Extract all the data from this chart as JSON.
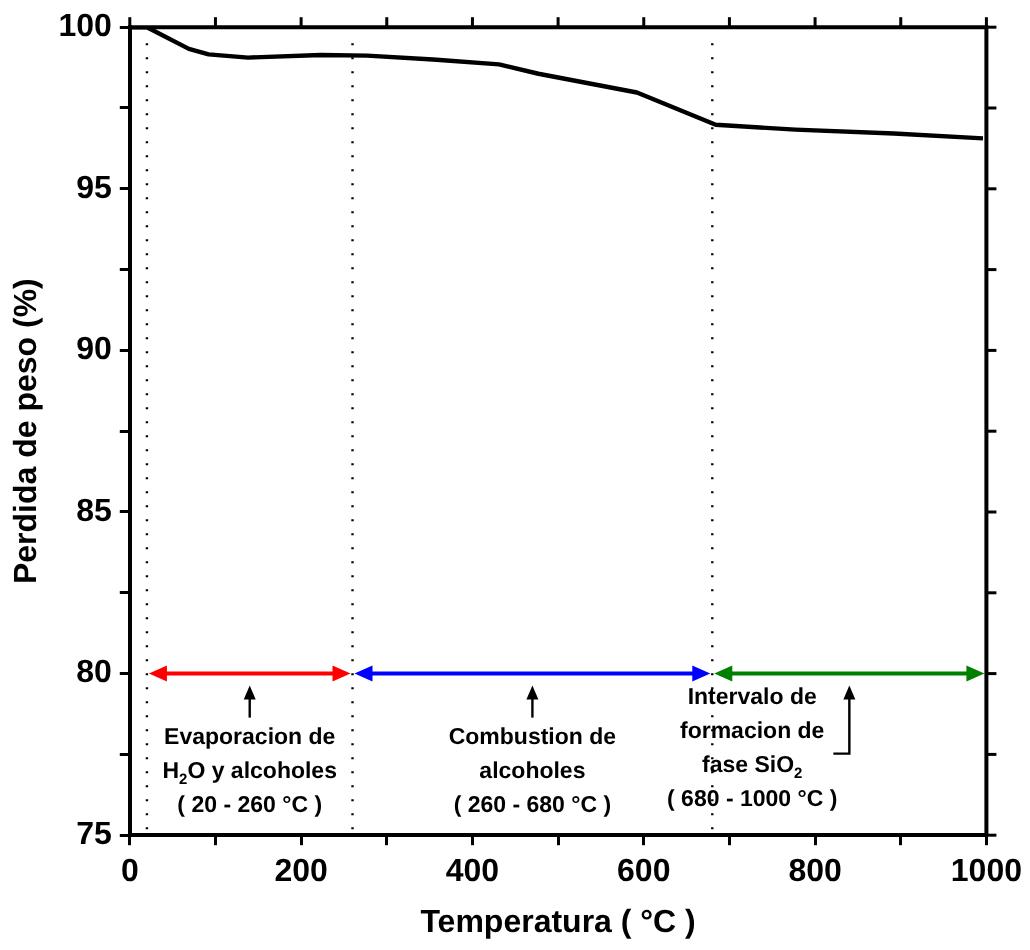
{
  "chart_data": {
    "type": "line",
    "xlabel": "Temperatura ( °C )",
    "ylabel": "Perdida de peso (%)",
    "x": [
      0,
      20,
      69,
      92,
      138,
      223,
      277,
      354,
      431,
      477,
      592,
      684,
      777,
      892,
      996
    ],
    "series": [
      {
        "color": "#000000",
        "values": [
          100,
          100,
          99.33,
          99.16,
          99.06,
          99.14,
          99.12,
          99.0,
          98.85,
          98.56,
          97.98,
          96.98,
          96.83,
          96.71,
          96.56
        ]
      }
    ],
    "xlim": [
      0,
      1000
    ],
    "ylim": [
      75,
      100
    ],
    "xticks": [
      0,
      {
        "value": 100,
        "label": null
      },
      200,
      {
        "value": 300,
        "label": null
      },
      400,
      {
        "value": 500,
        "label": null
      },
      600,
      {
        "value": 700,
        "label": null
      },
      800,
      {
        "value": 900,
        "label": null
      },
      1000
    ],
    "yticks": [
      75,
      {
        "value": 77.5,
        "label": null
      },
      80,
      {
        "value": 82.5,
        "label": null
      },
      85,
      {
        "value": 87.5,
        "label": null
      },
      90,
      {
        "value": 92.5,
        "label": null
      },
      95,
      {
        "value": 97.5,
        "label": null
      },
      100
    ],
    "marker": "none",
    "line_style": "solid",
    "grid": false,
    "legend": false,
    "ref_lines": [
      {
        "axis": "x",
        "value": 20,
        "line_style": "dotted",
        "color": "#000000"
      },
      {
        "axis": "x",
        "value": 260,
        "line_style": "dotted",
        "color": "#000000"
      },
      {
        "axis": "x",
        "value": 680,
        "line_style": "dotted",
        "color": "#000000"
      }
    ],
    "annotations": [
      "Evaporacion de\nH$_{2}$O y alcoholes\n( 20 - 260 °C )",
      "Combustion de\nalcoholes\n( 260 - 680 °C )",
      "Intervalo de\nformacion de\nfase SiO$_{2}$\n( 680 - 1000 °C )"
    ]
  }
}
